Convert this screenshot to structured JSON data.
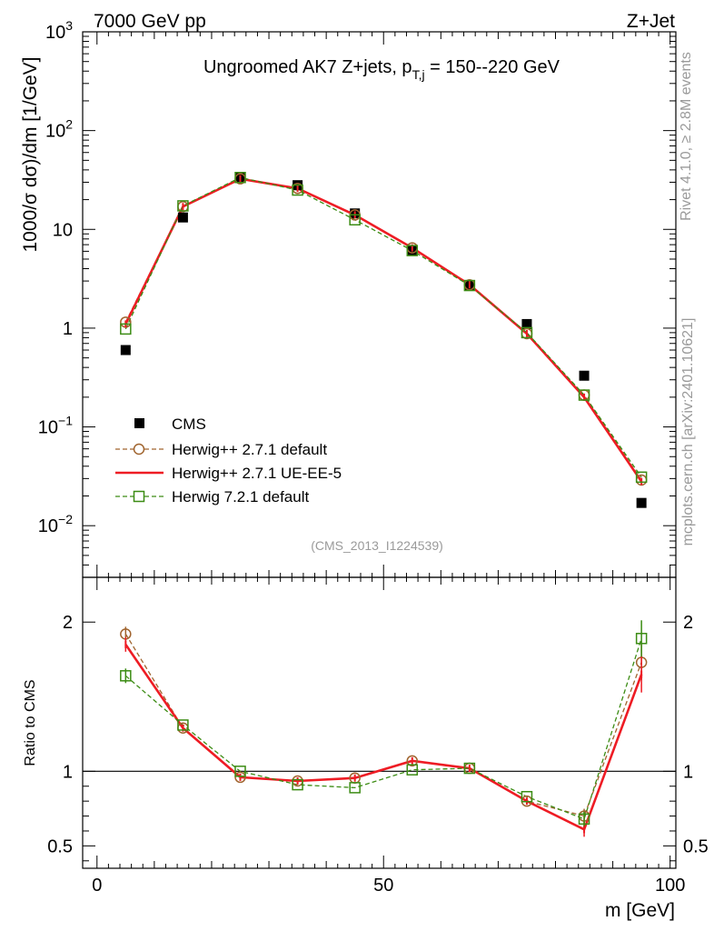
{
  "header": {
    "left": "7000 GeV pp",
    "right": "Z+Jet"
  },
  "side": {
    "rivet": "Rivet 4.1.0, ≥ 2.8M events",
    "mcplots": "mcplots.cern.ch [arXiv:2401.10621]"
  },
  "chart_data": [
    {
      "type": "scatter",
      "title": "Ungroomed AK7 Z+jets, p",
      "title_sub": "T,j",
      "title_suffix": " = 150--220 GeV",
      "analysis_id": "(CMS_2013_I1224539)",
      "ylabel": "1000/σ  dσ)/dm [1/GeV]",
      "xlabel": "m [GeV]",
      "yscale": "log",
      "ylim": [
        0.003,
        1000
      ],
      "xlim": [
        -2.5,
        101
      ],
      "y_ticks": [
        {
          "value": 0.01,
          "label": "10",
          "exp": "−2"
        },
        {
          "value": 0.1,
          "label": "10",
          "exp": "−1"
        },
        {
          "value": 1,
          "label": "1",
          "exp": ""
        },
        {
          "value": 10,
          "label": "10",
          "exp": ""
        },
        {
          "value": 100,
          "label": "10",
          "exp": "2"
        },
        {
          "value": 1000,
          "label": "10",
          "exp": "3"
        }
      ],
      "x": [
        5,
        15,
        25,
        35,
        45,
        55,
        65,
        75,
        85,
        95
      ],
      "series": [
        {
          "name": "CMS",
          "style": "data",
          "color": "#000000",
          "values": [
            0.6,
            13.2,
            34.0,
            28.0,
            14.5,
            6.1,
            2.7,
            1.1,
            0.33,
            0.017
          ]
        },
        {
          "name": "Herwig++ 2.7.1 default",
          "style": "dashed-circle",
          "color": "#a0642e",
          "values": [
            1.15,
            17.0,
            32.5,
            26.0,
            14.0,
            6.5,
            2.75,
            0.88,
            0.21,
            0.029
          ]
        },
        {
          "name": "Herwig++ 2.7.1 UE-EE-5",
          "style": "solid",
          "color": "#ee1c24",
          "values": [
            1.1,
            17.0,
            32.5,
            26.0,
            14.0,
            6.5,
            2.75,
            0.88,
            0.2,
            0.028
          ]
        },
        {
          "name": "Herwig 7.2.1 default",
          "style": "dashed-square",
          "color": "#3c8c14",
          "values": [
            0.98,
            17.3,
            33.5,
            25.0,
            12.5,
            6.1,
            2.7,
            0.9,
            0.21,
            0.031
          ]
        }
      ]
    },
    {
      "type": "line",
      "ylabel": "Ratio to CMS",
      "xlim": [
        -2.5,
        101
      ],
      "ylim": [
        0.35,
        2.3
      ],
      "y_ticks": [
        0.5,
        1,
        2
      ],
      "x_ticks": [
        0,
        50,
        100
      ],
      "x": [
        5,
        15,
        25,
        35,
        45,
        55,
        65,
        75,
        85,
        95
      ],
      "series": [
        {
          "name": "Herwig++ 2.7.1 default",
          "style": "dashed-circle",
          "color": "#a0642e",
          "values": [
            1.92,
            1.29,
            0.96,
            0.935,
            0.955,
            1.07,
            1.02,
            0.8,
            0.7,
            1.73
          ]
        },
        {
          "name": "Herwig++ 2.7.1 UE-EE-5",
          "style": "solid",
          "color": "#ee1c24",
          "values": [
            1.85,
            1.29,
            0.96,
            0.935,
            0.955,
            1.07,
            1.02,
            0.8,
            0.61,
            1.65
          ]
        },
        {
          "name": "Herwig 7.2.1 default",
          "style": "dashed-square",
          "color": "#3c8c14",
          "values": [
            1.64,
            1.31,
            1.0,
            0.91,
            0.89,
            1.01,
            1.02,
            0.83,
            0.68,
            1.89
          ]
        }
      ]
    }
  ]
}
